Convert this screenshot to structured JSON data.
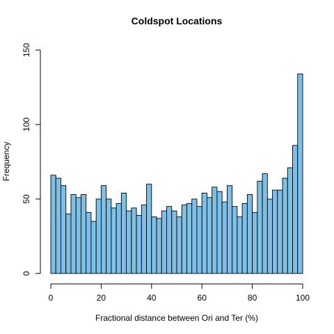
{
  "chart_data": {
    "type": "bar",
    "title": "Coldspot Locations",
    "xlabel": "Fractional distance between Ori and Ter (%)",
    "ylabel": "Frequency",
    "xlim": [
      0,
      100
    ],
    "ylim": [
      0,
      150
    ],
    "xticks": [
      0,
      20,
      40,
      60,
      80,
      100
    ],
    "yticks": [
      0,
      50,
      100,
      150
    ],
    "bin_width": 2,
    "bin_starts": [
      0,
      2,
      4,
      6,
      8,
      10,
      12,
      14,
      16,
      18,
      20,
      22,
      24,
      26,
      28,
      30,
      32,
      34,
      36,
      38,
      40,
      42,
      44,
      46,
      48,
      50,
      52,
      54,
      56,
      58,
      60,
      62,
      64,
      66,
      68,
      70,
      72,
      74,
      76,
      78,
      80,
      82,
      84,
      86,
      88,
      90,
      92,
      94,
      96,
      98
    ],
    "values": [
      66,
      64,
      59,
      40,
      53,
      51,
      53,
      41,
      35,
      50,
      59,
      50,
      44,
      47,
      54,
      42,
      44,
      39,
      46,
      60,
      38,
      37,
      42,
      45,
      42,
      38,
      46,
      47,
      50,
      45,
      54,
      51,
      58,
      55,
      48,
      59,
      45,
      38,
      47,
      53,
      41,
      62,
      67,
      50,
      56,
      56,
      64,
      71,
      86,
      134
    ],
    "bar_color": "#7ebfe6",
    "grid": false,
    "legend": "none"
  }
}
